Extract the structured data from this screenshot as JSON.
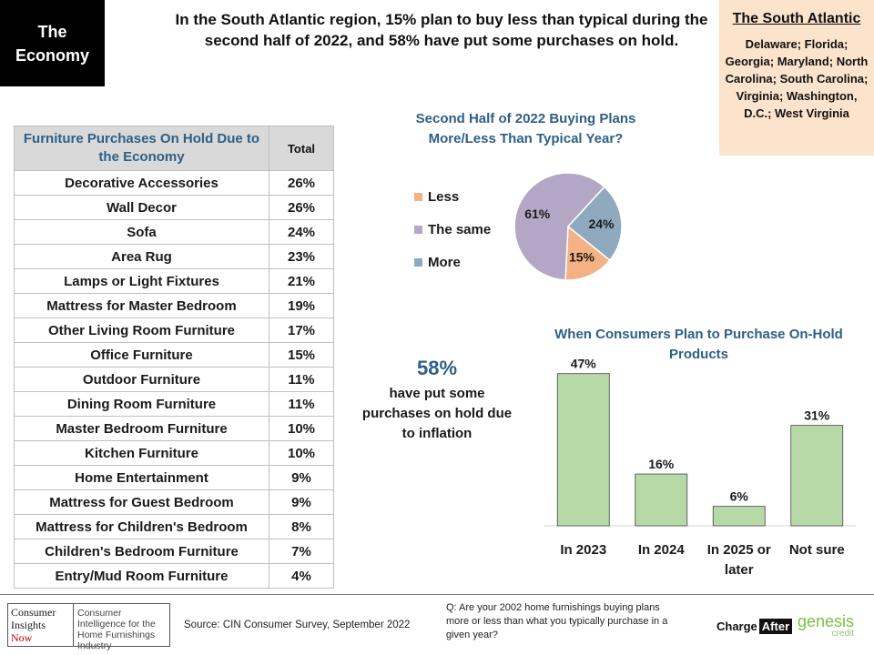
{
  "header": {
    "badge_line1": "The",
    "badge_line2": "Economy",
    "headline": "In the South Atlantic region, 15% plan to buy less than typical during the second half of 2022, and 58% have put some purchases on hold."
  },
  "region": {
    "title": "The South Atlantic",
    "states": "Delaware; Florida; Georgia; Maryland; North Carolina; South Carolina; Virginia; Washington, D.C.; West Virginia"
  },
  "table": {
    "header_item": "Furniture Purchases On Hold Due to the Economy",
    "header_total": "Total",
    "rows": [
      {
        "item": "Decorative Accessories",
        "total": "26%"
      },
      {
        "item": "Wall Decor",
        "total": "26%"
      },
      {
        "item": "Sofa",
        "total": "24%"
      },
      {
        "item": "Area Rug",
        "total": "23%"
      },
      {
        "item": "Lamps or Light Fixtures",
        "total": "21%"
      },
      {
        "item": "Mattress for Master Bedroom",
        "total": "19%"
      },
      {
        "item": "Other Living Room Furniture",
        "total": "17%"
      },
      {
        "item": "Office Furniture",
        "total": "15%"
      },
      {
        "item": "Outdoor Furniture",
        "total": "11%"
      },
      {
        "item": "Dining Room Furniture",
        "total": "11%"
      },
      {
        "item": "Master Bedroom Furniture",
        "total": "10%"
      },
      {
        "item": "Kitchen Furniture",
        "total": "10%"
      },
      {
        "item": "Home Entertainment",
        "total": "9%"
      },
      {
        "item": "Mattress for Guest Bedroom",
        "total": "9%"
      },
      {
        "item": "Mattress for Children's Bedroom",
        "total": "8%"
      },
      {
        "item": "Children's Bedroom Furniture",
        "total": "7%"
      },
      {
        "item": "Entry/Mud Room Furniture",
        "total": "4%"
      }
    ]
  },
  "stat": {
    "big": "58%",
    "text": "have put some purchases on hold due to inflation"
  },
  "chart_data": [
    {
      "type": "pie",
      "title": "Second Half of 2022 Buying Plans More/Less Than Typical Year?",
      "legend_position": "left",
      "slices": [
        {
          "label": "Less",
          "value": 15,
          "display": "15%",
          "color": "#f4b183"
        },
        {
          "label": "The same",
          "value": 61,
          "display": "61%",
          "color": "#b4a7c6"
        },
        {
          "label": "More",
          "value": 24,
          "display": "24%",
          "color": "#8faabf"
        }
      ]
    },
    {
      "type": "bar",
      "title": "When Consumers Plan to Purchase On-Hold Products",
      "categories": [
        "In 2023",
        "In 2024",
        "In 2025 or later",
        "Not sure"
      ],
      "values": [
        47,
        16,
        6,
        31
      ],
      "labels": [
        "47%",
        "16%",
        "6%",
        "31%"
      ],
      "color": "#b7d9a8",
      "ylim": [
        0,
        50
      ],
      "grid": false
    }
  ],
  "footer": {
    "logo_line1": "Consumer",
    "logo_line2": "Insights",
    "logo_line3": "Now",
    "logo_tagline": "Consumer Intelligence for the Home Furnishings Industry",
    "source": "Source:  CIN Consumer Survey, September  2022",
    "question": "Q: Are your 2002 home furnishings buying plans more or less than what you typically purchase in a given year?",
    "chargeafter_1": "Charge",
    "chargeafter_2": "After",
    "genesis_1": "genesis",
    "genesis_2": "credit"
  }
}
